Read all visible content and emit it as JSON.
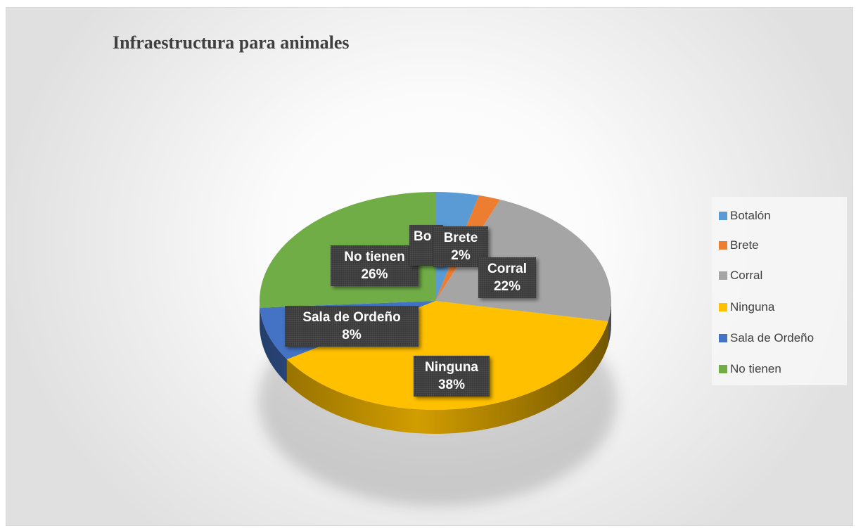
{
  "chart_data": {
    "type": "pie",
    "title": "Infraestructura para animales",
    "legend_position": "right",
    "slices": [
      {
        "name": "Botalón",
        "value": 4,
        "color": "#5B9BD5",
        "label_name": "Bo",
        "label_value": ""
      },
      {
        "name": "Brete",
        "value": 2,
        "color": "#ED7D31",
        "label_name": "Brete",
        "label_value": "2%"
      },
      {
        "name": "Corral",
        "value": 22,
        "color": "#A5A5A5",
        "label_name": "Corral",
        "label_value": "22%"
      },
      {
        "name": "Ninguna",
        "value": 38,
        "color": "#FFC000",
        "label_name": "Ninguna",
        "label_value": "38%"
      },
      {
        "name": "Sala de Ordeño",
        "value": 8,
        "color": "#4472C4",
        "label_name": "Sala de Ordeño",
        "label_value": "8%"
      },
      {
        "name": "No tienen",
        "value": 26,
        "color": "#70AD47",
        "label_name": "No tienen",
        "label_value": "26%"
      }
    ]
  }
}
